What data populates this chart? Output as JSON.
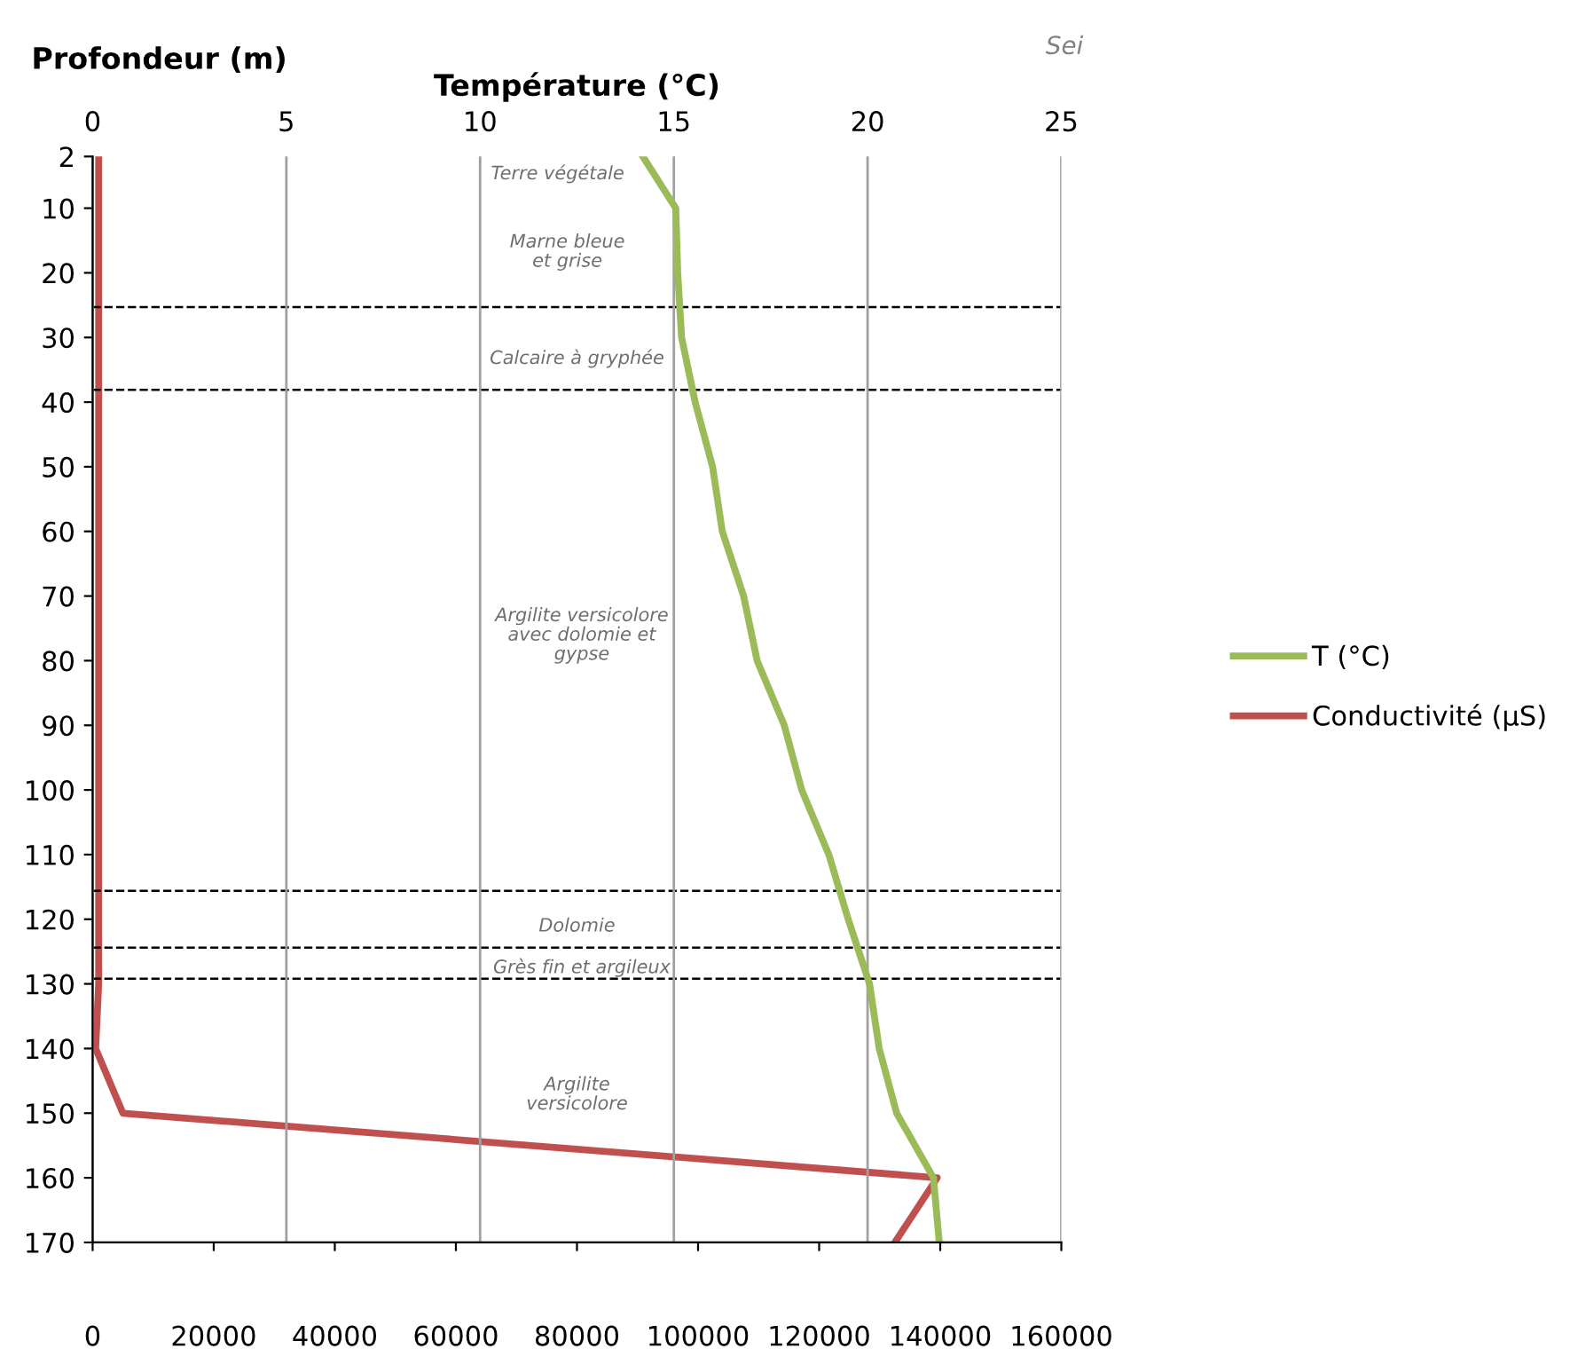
{
  "chart_data": {
    "type": "line",
    "orientation": "horizontal",
    "ylabel": "Profondeur (m)",
    "x2label": "Température (°C)",
    "x": [
      2,
      10,
      20,
      30,
      40,
      50,
      60,
      70,
      80,
      90,
      100,
      110,
      120,
      130,
      140,
      150,
      160,
      170
    ],
    "series": [
      {
        "name": "T (°C)",
        "color": "#9bbb59",
        "axis": "x2",
        "values": [
          14.2,
          15.05,
          15.1,
          15.2,
          15.55,
          16.0,
          16.25,
          16.8,
          17.15,
          17.85,
          18.3,
          19.0,
          19.5,
          20.05,
          20.3,
          20.75,
          21.7,
          21.85
        ]
      },
      {
        "name": "Conductivité (µS)",
        "color": "#c0504d",
        "values": [
          1000,
          1000,
          1000,
          1000,
          1000,
          1000,
          1000,
          1000,
          1000,
          1000,
          1000,
          1000,
          1000,
          1000,
          500,
          5000,
          139500,
          132500
        ]
      }
    ],
    "xlim": [
      0,
      160000
    ],
    "xticks": [
      0,
      20000,
      40000,
      60000,
      80000,
      100000,
      120000,
      140000,
      160000
    ],
    "x2lim": [
      0,
      25
    ],
    "x2ticks": [
      0,
      5,
      10,
      15,
      20,
      25
    ],
    "ylim": [
      170,
      2
    ],
    "yticks": [
      2,
      10,
      20,
      30,
      40,
      50,
      60,
      70,
      80,
      90,
      100,
      110,
      120,
      130,
      140,
      150,
      160,
      170
    ],
    "grid": "x2",
    "legend": "right",
    "line_style": "solid",
    "marker": "none",
    "ref_lines": [
      {
        "axis": "y",
        "value": 25.3,
        "color": "#000000",
        "line_style": "dashed"
      },
      {
        "axis": "y",
        "value": 38.1,
        "color": "#000000",
        "line_style": "dashed"
      },
      {
        "axis": "y",
        "value": 115.6,
        "color": "#000000",
        "line_style": "dashed"
      },
      {
        "axis": "y",
        "value": 124.4,
        "color": "#000000",
        "line_style": "dashed"
      },
      {
        "axis": "y",
        "value": 129.2,
        "color": "#000000",
        "line_style": "dashed"
      }
    ],
    "annotations": [
      "Terre végétale",
      "Marne bleue\net grise",
      "Calcaire à gryphée",
      "Argilite versicolore\navec dolomie et\ngypse",
      "Dolomie",
      "Grès fin et argileux",
      "Argilite\nversicolore",
      "Sei"
    ]
  }
}
